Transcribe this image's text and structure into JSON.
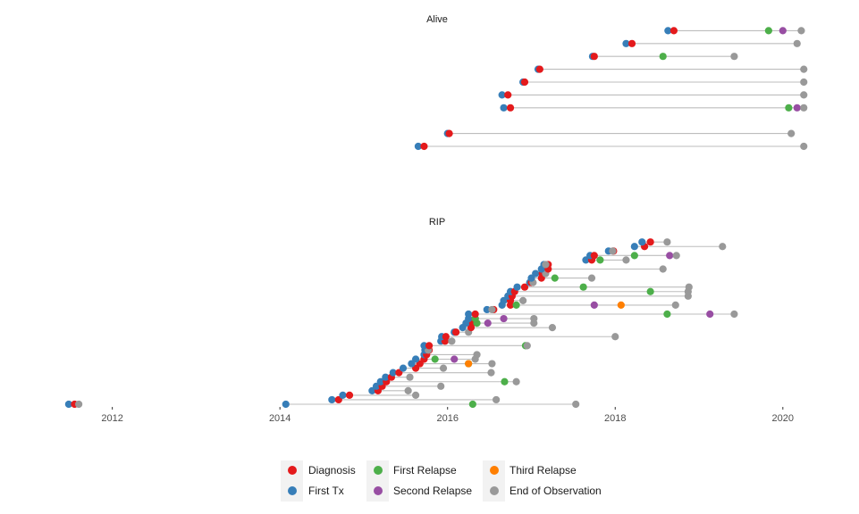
{
  "colors": {
    "Diagnosis": "#E41A1C",
    "First Tx": "#377EB8",
    "First Relapse": "#4DAF4A",
    "Second Relapse": "#984EA3",
    "Third Relapse": "#FF7F00",
    "End of Observation": "#999999"
  },
  "chart_data": {
    "type": "scatter",
    "title": "",
    "xlabel": "",
    "ylabel": "",
    "xlim": [
      2011.3,
      2020.45
    ],
    "x_ticks": [
      "2012",
      "2014",
      "2016",
      "2018",
      "2020"
    ],
    "legend_position": "bottom",
    "legend": [
      "Diagnosis",
      "First Tx",
      "First Relapse",
      "Second Relapse",
      "Third Relapse",
      "End of Observation"
    ],
    "panels": [
      {
        "title": "Alive",
        "patients": [
          {
            "y": 1,
            "events": [
              [
                "Diagnosis",
                2015.72
              ],
              [
                "First Tx",
                2015.65
              ],
              [
                "End of Observation",
                2020.25
              ]
            ]
          },
          {
            "y": 2,
            "events": [
              [
                "Diagnosis",
                2016.02
              ],
              [
                "First Tx",
                2016.0
              ],
              [
                "End of Observation",
                2020.1
              ]
            ]
          },
          {
            "y": 4,
            "events": [
              [
                "Diagnosis",
                2016.75
              ],
              [
                "First Tx",
                2016.67
              ],
              [
                "First Relapse",
                2020.07
              ],
              [
                "Second Relapse",
                2020.17
              ],
              [
                "End of Observation",
                2020.25
              ]
            ]
          },
          {
            "y": 5,
            "events": [
              [
                "Diagnosis",
                2016.72
              ],
              [
                "First Tx",
                2016.65
              ],
              [
                "End of Observation",
                2020.25
              ]
            ]
          },
          {
            "y": 6,
            "events": [
              [
                "Diagnosis",
                2016.92
              ],
              [
                "First Tx",
                2016.9
              ],
              [
                "End of Observation",
                2020.25
              ]
            ]
          },
          {
            "y": 7,
            "events": [
              [
                "Diagnosis",
                2017.1
              ],
              [
                "First Tx",
                2017.08
              ],
              [
                "End of Observation",
                2020.25
              ]
            ]
          },
          {
            "y": 8,
            "events": [
              [
                "Diagnosis",
                2017.75
              ],
              [
                "First Tx",
                2017.73
              ],
              [
                "First Relapse",
                2018.57
              ],
              [
                "End of Observation",
                2019.42
              ]
            ]
          },
          {
            "y": 9,
            "events": [
              [
                "Diagnosis",
                2018.2
              ],
              [
                "First Tx",
                2018.13
              ],
              [
                "End of Observation",
                2020.17
              ]
            ]
          },
          {
            "y": 10,
            "events": [
              [
                "Diagnosis",
                2018.7
              ],
              [
                "First Tx",
                2018.63
              ],
              [
                "First Relapse",
                2019.83
              ],
              [
                "Second Relapse",
                2020.0
              ],
              [
                "End of Observation",
                2020.22
              ]
            ]
          }
        ]
      },
      {
        "title": "RIP",
        "patients": [
          {
            "y": 1,
            "events": [
              [
                "Diagnosis",
                2011.55
              ],
              [
                "First Tx",
                2011.48
              ],
              [
                "End of Observation",
                2011.6
              ]
            ]
          },
          {
            "y": 1,
            "events": [
              [
                "First Tx",
                2014.07
              ],
              [
                "First Relapse",
                2016.3
              ],
              [
                "End of Observation",
                2017.53
              ]
            ]
          },
          {
            "y": 2,
            "events": [
              [
                "Diagnosis",
                2014.7
              ],
              [
                "First Tx",
                2014.62
              ],
              [
                "End of Observation",
                2016.58
              ]
            ]
          },
          {
            "y": 3,
            "events": [
              [
                "Diagnosis",
                2014.83
              ],
              [
                "First Tx",
                2014.75
              ],
              [
                "End of Observation",
                2015.62
              ]
            ]
          },
          {
            "y": 4,
            "events": [
              [
                "Diagnosis",
                2015.17
              ],
              [
                "First Tx",
                2015.1
              ],
              [
                "End of Observation",
                2015.53
              ]
            ]
          },
          {
            "y": 5,
            "events": [
              [
                "Diagnosis",
                2015.22
              ],
              [
                "First Tx",
                2015.15
              ],
              [
                "End of Observation",
                2015.92
              ]
            ]
          },
          {
            "y": 6,
            "events": [
              [
                "Diagnosis",
                2015.27
              ],
              [
                "First Tx",
                2015.2
              ],
              [
                "First Relapse",
                2016.68
              ],
              [
                "End of Observation",
                2016.82
              ]
            ]
          },
          {
            "y": 7,
            "events": [
              [
                "Diagnosis",
                2015.33
              ],
              [
                "First Tx",
                2015.26
              ],
              [
                "End of Observation",
                2015.55
              ]
            ]
          },
          {
            "y": 8,
            "events": [
              [
                "Diagnosis",
                2015.42
              ],
              [
                "First Tx",
                2015.35
              ],
              [
                "End of Observation",
                2016.52
              ]
            ]
          },
          {
            "y": 9,
            "events": [
              [
                "Diagnosis",
                2015.62
              ],
              [
                "First Tx",
                2015.47
              ],
              [
                "End of Observation",
                2015.95
              ]
            ]
          },
          {
            "y": 10,
            "events": [
              [
                "Diagnosis",
                2015.67
              ],
              [
                "First Tx",
                2015.57
              ],
              [
                "First Relapse",
                2016.25
              ],
              [
                "Third Relapse",
                2016.25
              ],
              [
                "End of Observation",
                2016.53
              ]
            ]
          },
          {
            "y": 11,
            "events": [
              [
                "Diagnosis",
                2015.72
              ],
              [
                "First Tx",
                2015.62
              ],
              [
                "First Relapse",
                2015.85
              ],
              [
                "Second Relapse",
                2016.08
              ],
              [
                "End of Observation",
                2016.33
              ]
            ]
          },
          {
            "y": 12,
            "events": [
              [
                "Diagnosis",
                2015.75
              ],
              [
                "First Tx",
                2015.72
              ],
              [
                "End of Observation",
                2016.35
              ]
            ]
          },
          {
            "y": 13,
            "events": [
              [
                "Diagnosis",
                2015.78
              ],
              [
                "First Tx",
                2015.73
              ],
              [
                "End of Observation",
                2015.77
              ]
            ]
          },
          {
            "y": 14,
            "events": [
              [
                "Diagnosis",
                2015.78
              ],
              [
                "First Tx",
                2015.72
              ],
              [
                "First Relapse",
                2016.93
              ],
              [
                "End of Observation",
                2016.95
              ]
            ]
          },
          {
            "y": 15,
            "events": [
              [
                "Diagnosis",
                2015.97
              ],
              [
                "First Tx",
                2015.92
              ],
              [
                "End of Observation",
                2016.05
              ]
            ]
          },
          {
            "y": 16,
            "events": [
              [
                "Diagnosis",
                2015.98
              ],
              [
                "First Tx",
                2015.93
              ],
              [
                "End of Observation",
                2018.0
              ]
            ]
          },
          {
            "y": 17,
            "events": [
              [
                "Diagnosis",
                2016.1
              ],
              [
                "First Tx",
                2016.08
              ],
              [
                "End of Observation",
                2016.25
              ]
            ]
          },
          {
            "y": 18,
            "events": [
              [
                "Diagnosis",
                2016.28
              ],
              [
                "First Tx",
                2016.18
              ],
              [
                "End of Observation",
                2017.25
              ]
            ]
          },
          {
            "y": 19,
            "events": [
              [
                "Diagnosis",
                2016.3
              ],
              [
                "First Tx",
                2016.22
              ],
              [
                "First Relapse",
                2016.35
              ],
              [
                "Second Relapse",
                2016.48
              ],
              [
                "End of Observation",
                2017.03
              ]
            ]
          },
          {
            "y": 20,
            "events": [
              [
                "Diagnosis",
                2016.33
              ],
              [
                "First Tx",
                2016.25
              ],
              [
                "First Relapse",
                2016.33
              ],
              [
                "Second Relapse",
                2016.67
              ],
              [
                "End of Observation",
                2017.03
              ]
            ]
          },
          {
            "y": 21,
            "events": [
              [
                "Diagnosis",
                2016.33
              ],
              [
                "First Tx",
                2016.25
              ],
              [
                "First Relapse",
                2018.62
              ],
              [
                "Second Relapse",
                2019.13
              ],
              [
                "End of Observation",
                2019.42
              ]
            ]
          },
          {
            "y": 22,
            "events": [
              [
                "Diagnosis",
                2016.55
              ],
              [
                "First Tx",
                2016.47
              ],
              [
                "End of Observation",
                2016.53
              ]
            ]
          },
          {
            "y": 23,
            "events": [
              [
                "Diagnosis",
                2016.75
              ],
              [
                "First Tx",
                2016.65
              ],
              [
                "First Relapse",
                2016.82
              ],
              [
                "Second Relapse",
                2017.75
              ],
              [
                "Third Relapse",
                2018.07
              ],
              [
                "End of Observation",
                2018.72
              ]
            ]
          },
          {
            "y": 24,
            "events": [
              [
                "Diagnosis",
                2016.75
              ],
              [
                "First Tx",
                2016.67
              ],
              [
                "End of Observation",
                2016.9
              ]
            ]
          },
          {
            "y": 25,
            "events": [
              [
                "Diagnosis",
                2016.77
              ],
              [
                "First Tx",
                2016.72
              ],
              [
                "End of Observation",
                2018.87
              ]
            ]
          },
          {
            "y": 26,
            "events": [
              [
                "Diagnosis",
                2016.8
              ],
              [
                "First Tx",
                2016.75
              ],
              [
                "First Relapse",
                2018.42
              ],
              [
                "End of Observation",
                2018.87
              ]
            ]
          },
          {
            "y": 27,
            "events": [
              [
                "Diagnosis",
                2016.92
              ],
              [
                "First Tx",
                2016.83
              ],
              [
                "First Relapse",
                2017.62
              ],
              [
                "End of Observation",
                2018.88
              ]
            ]
          },
          {
            "y": 28,
            "events": [
              [
                "Diagnosis",
                2017.0
              ],
              [
                "First Tx",
                2016.98
              ],
              [
                "End of Observation",
                2017.02
              ]
            ]
          },
          {
            "y": 29,
            "events": [
              [
                "Diagnosis",
                2017.12
              ],
              [
                "First Tx",
                2017.0
              ],
              [
                "First Relapse",
                2017.28
              ],
              [
                "End of Observation",
                2017.72
              ]
            ]
          },
          {
            "y": 30,
            "events": [
              [
                "Diagnosis",
                2017.13
              ],
              [
                "First Tx",
                2017.05
              ],
              [
                "End of Observation",
                2017.17
              ]
            ]
          },
          {
            "y": 31,
            "events": [
              [
                "Diagnosis",
                2017.2
              ],
              [
                "First Tx",
                2017.12
              ],
              [
                "End of Observation",
                2018.57
              ]
            ]
          },
          {
            "y": 32,
            "events": [
              [
                "Diagnosis",
                2017.2
              ],
              [
                "First Tx",
                2017.15
              ],
              [
                "End of Observation",
                2017.17
              ]
            ]
          },
          {
            "y": 33,
            "events": [
              [
                "Diagnosis",
                2017.72
              ],
              [
                "First Tx",
                2017.65
              ],
              [
                "First Relapse",
                2017.82
              ],
              [
                "End of Observation",
                2018.13
              ]
            ]
          },
          {
            "y": 34,
            "events": [
              [
                "Diagnosis",
                2017.75
              ],
              [
                "First Tx",
                2017.7
              ],
              [
                "First Relapse",
                2018.23
              ],
              [
                "Second Relapse",
                2018.65
              ],
              [
                "End of Observation",
                2018.73
              ]
            ]
          },
          {
            "y": 35,
            "events": [
              [
                "Diagnosis",
                2017.98
              ],
              [
                "First Tx",
                2017.92
              ],
              [
                "End of Observation",
                2017.97
              ]
            ]
          },
          {
            "y": 36,
            "events": [
              [
                "Diagnosis",
                2018.35
              ],
              [
                "First Tx",
                2018.23
              ],
              [
                "End of Observation",
                2019.28
              ]
            ]
          },
          {
            "y": 37,
            "events": [
              [
                "Diagnosis",
                2018.42
              ],
              [
                "First Tx",
                2018.32
              ],
              [
                "End of Observation",
                2018.62
              ]
            ]
          }
        ]
      }
    ]
  }
}
